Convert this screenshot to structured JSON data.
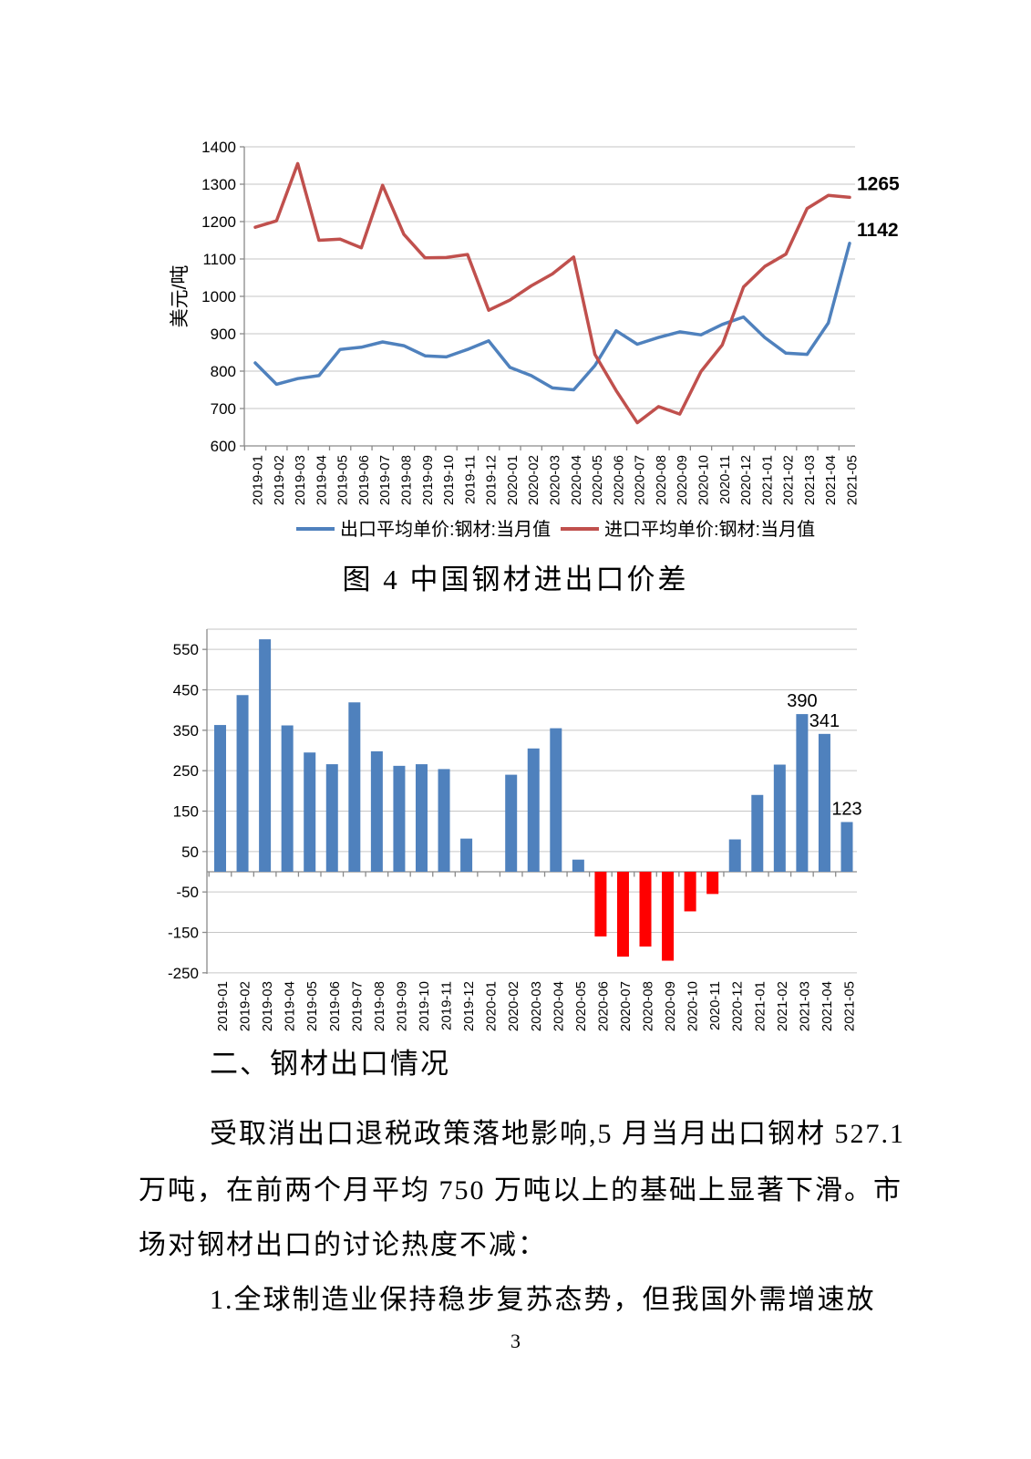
{
  "page_number": "3",
  "figure": {
    "caption": "图 4 中国钢材进出口价差"
  },
  "body": {
    "section_heading": "二、钢材出口情况",
    "paragraph_lines": [
      "受取消出口退税政策落地影响,5 月当月出口钢材 527.1",
      "万吨，在前两个月平均 750 万吨以上的基础上显著下滑。市",
      "场对钢材出口的讨论热度不减："
    ],
    "list_item": "1.全球制造业保持稳步复苏态势，但我国外需增速放"
  },
  "chart_data": [
    {
      "type": "line",
      "title": "",
      "xlabel": "",
      "ylabel": "美元/吨",
      "ylim": [
        600,
        1400
      ],
      "ytick_step": 100,
      "grid": true,
      "legend_position": "bottom",
      "axis_color": "#8a8a8a",
      "grid_color": "#c6c6c6",
      "categories": [
        "2019-01",
        "2019-02",
        "2019-03",
        "2019-04",
        "2019-05",
        "2019-06",
        "2019-07",
        "2019-08",
        "2019-09",
        "2019-10",
        "2019-11",
        "2019-12",
        "2020-01",
        "2020-02",
        "2020-03",
        "2020-04",
        "2020-05",
        "2020-06",
        "2020-07",
        "2020-08",
        "2020-09",
        "2020-10",
        "2020-11",
        "2020-12",
        "2021-01",
        "2021-02",
        "2021-03",
        "2021-04",
        "2021-05"
      ],
      "series": [
        {
          "name": "出口平均单价:钢材:当月值",
          "color": "#4F81BD",
          "values": [
            822,
            765,
            780,
            788,
            858,
            864,
            878,
            868,
            841,
            838,
            858,
            881,
            810,
            788,
            755,
            750,
            815,
            908,
            872,
            890,
            905,
            897,
            925,
            945,
            890,
            848,
            845,
            929,
            1142
          ]
        },
        {
          "name": "进口平均单价:钢材:当月值",
          "color": "#C0504D",
          "values": [
            1185,
            1202,
            1355,
            1150,
            1153,
            1130,
            1297,
            1166,
            1103,
            1104,
            1112,
            963,
            990,
            1028,
            1060,
            1105,
            845,
            748,
            662,
            705,
            685,
            799,
            870,
            1025,
            1080,
            1113,
            1235,
            1270,
            1265
          ]
        }
      ],
      "annotations": [
        {
          "text": "1265",
          "category": "2021-05",
          "value": 1265
        },
        {
          "text": "1142",
          "category": "2021-05",
          "value": 1142
        }
      ]
    },
    {
      "type": "bar",
      "title": "",
      "xlabel": "",
      "ylabel": "",
      "ylim": [
        -250,
        600
      ],
      "yticks": [
        550,
        450,
        350,
        250,
        150,
        50,
        -50,
        -150,
        -250
      ],
      "grid": true,
      "legend_position": "none",
      "axis_color": "#8a8a8a",
      "grid_color": "#c6c6c6",
      "categories": [
        "2019-01",
        "2019-02",
        "2019-03",
        "2019-04",
        "2019-05",
        "2019-06",
        "2019-07",
        "2019-08",
        "2019-09",
        "2019-10",
        "2019-11",
        "2019-12",
        "2020-01",
        "2020-02",
        "2020-03",
        "2020-04",
        "2020-05",
        "2020-06",
        "2020-07",
        "2020-08",
        "2020-09",
        "2020-10",
        "2020-11",
        "2020-12",
        "2021-01",
        "2021-02",
        "2021-03",
        "2021-04",
        "2021-05"
      ],
      "series": [
        {
          "name": "进出口价差",
          "positive_color": "#4F81BD",
          "negative_color": "#FF0000",
          "values": [
            363,
            437,
            575,
            362,
            295,
            266,
            419,
            298,
            262,
            266,
            254,
            82,
            null,
            240,
            305,
            355,
            30,
            -160,
            -210,
            -185,
            -220,
            -98,
            -55,
            80,
            190,
            265,
            390,
            341,
            123
          ]
        }
      ],
      "annotations": [
        {
          "text": "390",
          "category": "2021-03",
          "value": 390
        },
        {
          "text": "341",
          "category": "2021-04",
          "value": 341
        },
        {
          "text": "123",
          "category": "2021-05",
          "value": 123
        }
      ]
    }
  ]
}
